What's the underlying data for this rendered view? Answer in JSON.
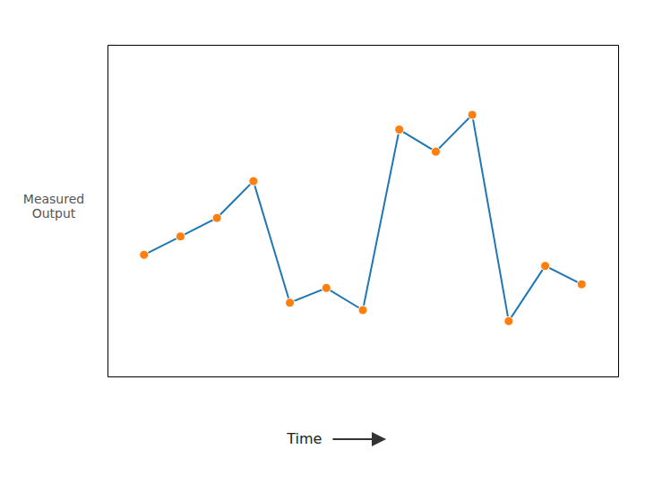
{
  "chart_data": {
    "type": "line",
    "x_label": "Time",
    "y_label": "Measured\nOutput",
    "x": [
      1,
      2,
      3,
      4,
      5,
      6,
      7,
      8,
      9,
      10,
      11,
      12,
      13
    ],
    "values": [
      3.8,
      4.3,
      4.8,
      5.8,
      2.5,
      2.9,
      2.3,
      7.2,
      6.6,
      7.6,
      2.0,
      3.5,
      3.0
    ],
    "marker": "circle",
    "xlim": [
      0,
      14
    ],
    "ylim": [
      0.5,
      9.5
    ],
    "tick_labels": false,
    "grid": false
  }
}
